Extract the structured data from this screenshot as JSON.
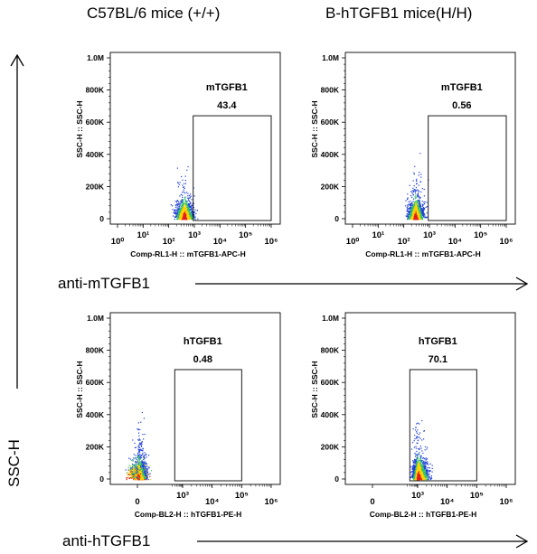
{
  "figure": {
    "col1_title": "C57BL/6 mice (+/+)",
    "col2_title": "B-hTGFB1 mice(H/H)",
    "row1_label": "anti-mTGFB1",
    "row2_label": "anti-hTGFB1",
    "y_label": "SSC-H"
  },
  "chart_data": [
    {
      "type": "scatter",
      "title": "",
      "xlabel": "Comp-RL1-H :: mTGFB1-APC-H",
      "ylabel": "SSC-H :: SSC-H",
      "x_scale": "log",
      "x_ticks": [
        "10⁰",
        "10¹",
        "10²",
        "10³",
        "10⁴",
        "10⁵",
        "10⁶"
      ],
      "y_ticks": [
        "0",
        "200K",
        "400K",
        "600K",
        "800K",
        "1.0M"
      ],
      "ylim": [
        0,
        1000000
      ],
      "gate": {
        "label": "mTGFB1",
        "value": "43.4",
        "x_range": [
          900,
          1000000
        ],
        "y_range": [
          0,
          640000
        ]
      },
      "population": {
        "x_center_log10": 2.6,
        "x_spread_log10": 0.35,
        "y_center": 60000,
        "y_spread": 150000,
        "points": 1100
      },
      "colors": {
        "cloud": "#1f3fd6",
        "core": "#ffd200",
        "hot": "#e02020"
      }
    },
    {
      "type": "scatter",
      "title": "",
      "xlabel": "Comp-RL1-H :: mTGFB1-APC-H",
      "ylabel": "SSC-H :: SSC-H",
      "x_scale": "log",
      "x_ticks": [
        "10⁰",
        "10¹",
        "10²",
        "10³",
        "10⁴",
        "10⁵",
        "10⁶"
      ],
      "y_ticks": [
        "0",
        "200K",
        "400K",
        "600K",
        "800K",
        "1.0M"
      ],
      "ylim": [
        0,
        1000000
      ],
      "gate": {
        "label": "mTGFB1",
        "value": "0.56",
        "x_range": [
          900,
          1000000
        ],
        "y_range": [
          0,
          640000
        ]
      },
      "population": {
        "x_center_log10": 2.45,
        "x_spread_log10": 0.3,
        "y_center": 60000,
        "y_spread": 160000,
        "points": 1100
      },
      "colors": {
        "cloud": "#1f3fd6",
        "core": "#ffd200",
        "hot": "#e02020"
      }
    },
    {
      "type": "scatter",
      "title": "",
      "xlabel": "Comp-BL2-H :: hTGFB1-PE-H",
      "ylabel": "SSC-H :: SSC-H",
      "x_scale": "biexponential",
      "x_ticks": [
        "0",
        "10³",
        "10⁴",
        "10⁵",
        "10⁶"
      ],
      "y_ticks": [
        "0",
        "200K",
        "400K",
        "600K",
        "800K",
        "1.0M"
      ],
      "ylim": [
        0,
        1000000
      ],
      "gate": {
        "label": "hTGFB1",
        "value": "0.48",
        "x_range": [
          300,
          100000
        ],
        "y_range": [
          0,
          680000
        ]
      },
      "population": {
        "x_center_log10": 0.0,
        "x_spread_log10": 0.55,
        "y_center": 60000,
        "y_spread": 170000,
        "points": 1300
      },
      "colors": {
        "cloud": "#1f3fd6",
        "core": "#ffd200",
        "hot": "#e02020"
      }
    },
    {
      "type": "scatter",
      "title": "",
      "xlabel": "Comp-BL2-H :: hTGFB1-PE-H",
      "ylabel": "SSC-H :: SSC-H",
      "x_scale": "biexponential",
      "x_ticks": [
        "0",
        "10³",
        "10⁴",
        "10⁵",
        "10⁶"
      ],
      "y_ticks": [
        "0",
        "200K",
        "400K",
        "600K",
        "800K",
        "1.0M"
      ],
      "ylim": [
        0,
        1000000
      ],
      "gate": {
        "label": "hTGFB1",
        "value": "70.1",
        "x_range": [
          300,
          100000
        ],
        "y_range": [
          0,
          680000
        ]
      },
      "population": {
        "x_center_log10": 3.0,
        "x_spread_log10": 0.35,
        "y_center": 60000,
        "y_spread": 170000,
        "points": 1300
      },
      "colors": {
        "cloud": "#1f3fd6",
        "core": "#ffd200",
        "hot": "#e02020"
      }
    }
  ]
}
